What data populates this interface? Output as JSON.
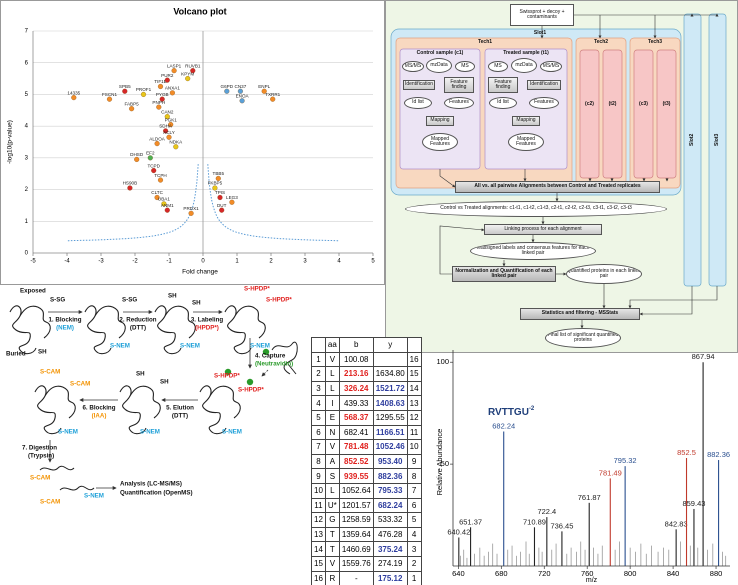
{
  "chart_data": [
    {
      "type": "scatter",
      "title": "Volcano plot",
      "x_label": "Fold change",
      "y_label": "-log10(p-value)",
      "x": [
        -3.8,
        -2.75,
        -2.3,
        -2.1,
        -1.75,
        -1.25,
        -1.05,
        -0.85,
        -0.3,
        -0.45,
        -0.9,
        -1.2,
        -1.3,
        -1.05,
        -0.95,
        -1.1,
        -1.0,
        -0.8,
        -1.35,
        -1.55,
        -1.95,
        -1.45,
        -1.25,
        -2.15,
        -1.35,
        -1.15,
        -1.05,
        -0.35,
        0.45,
        0.35,
        0.5,
        0.85,
        0.55,
        0.7,
        1.1,
        1.15,
        1.8,
        2.05
      ],
      "values": [
        4.9,
        4.85,
        5.1,
        4.55,
        5.0,
        5.25,
        5.45,
        5.75,
        5.75,
        5.5,
        5.05,
        4.85,
        4.6,
        4.3,
        4.05,
        3.85,
        3.65,
        3.35,
        3.45,
        3.0,
        2.95,
        2.6,
        2.3,
        2.05,
        1.75,
        1.55,
        1.35,
        1.25,
        2.35,
        2.05,
        1.75,
        1.6,
        1.35,
        5.1,
        5.1,
        4.8,
        5.1,
        4.85
      ],
      "point_labels": [
        "14335",
        "FSCN1",
        "SPB5",
        "FABP5",
        "PROF1",
        "TIF1B",
        "PUR2",
        "LASP1",
        "RUVB1",
        "KPYM",
        "ANXA1",
        "PYGB",
        "PNPH",
        "CAN2",
        "PGK1",
        "SDHA",
        "ACLY",
        "NDKA",
        "ALDOA",
        "EF2",
        "DHSD",
        "TCPD",
        "TCPH",
        "HS90B",
        "CLTC",
        "UBA1",
        "ANM1",
        "PRDX1",
        "TBB5",
        "FKBP5",
        "TPIS",
        "LEG3",
        "DUT",
        "G6PD",
        "CN37",
        "ENOA",
        "ENPL",
        "TXRR1"
      ],
      "colors": [
        "#f28c28",
        "#f28c28",
        "#d62728",
        "#f28c28",
        "#e8c619",
        "#f28c28",
        "#d62728",
        "#f28c28",
        "#d62728",
        "#e8c619",
        "#f28c28",
        "#d62728",
        "#f28c28",
        "#e8c619",
        "#f28c28",
        "#d62728",
        "#f28c28",
        "#e8c619",
        "#f28c28",
        "#4caf50",
        "#f28c28",
        "#d62728",
        "#f28c28",
        "#d62728",
        "#f28c28",
        "#e8c619",
        "#d62728",
        "#f28c28",
        "#f28c28",
        "#e8c619",
        "#d62728",
        "#f28c28",
        "#d62728",
        "#5aa0d8",
        "#5aa0d8",
        "#5aa0d8",
        "#f28c28",
        "#f28c28"
      ],
      "xlim": [
        -5,
        5
      ],
      "ylim": [
        0,
        7
      ],
      "xticks": [
        -5,
        -4,
        -3,
        -2,
        -1,
        0,
        1,
        2,
        3,
        4,
        5
      ],
      "yticks": [
        0,
        1,
        2,
        3,
        4,
        5,
        6,
        7
      ],
      "grid": true
    },
    {
      "type": "stem",
      "annotation": {
        "text": "RVTTGU",
        "superscript": "-2"
      },
      "x_label": "m/z",
      "y_label": "Relative Abundance",
      "xlim": [
        635,
        893
      ],
      "ylim": [
        0,
        106
      ],
      "xticks": [
        640,
        680,
        720,
        760,
        800,
        840,
        880
      ],
      "yticks": [
        50,
        100
      ],
      "series": [
        {
          "labels": true,
          "x": [
            640.42,
            651.37,
            682.24,
            710.89,
            722.4,
            736.45,
            761.87,
            781.49,
            795.32,
            842.83,
            852.5,
            859.43,
            867.94,
            882.36
          ],
          "values": [
            14,
            19,
            66,
            19,
            24,
            17,
            31,
            43,
            49,
            18,
            53,
            28,
            100,
            52
          ],
          "colors": [
            "#222222",
            "#222222",
            "#2a4f8f",
            "#222222",
            "#222222",
            "#222222",
            "#222222",
            "#c0392b",
            "#2a4f8f",
            "#222222",
            "#c0392b",
            "#222222",
            "#222222",
            "#2a4f8f"
          ]
        },
        {
          "labels": false,
          "color": "#8a8a8a",
          "x": [
            642,
            645,
            648,
            655,
            660,
            664,
            668,
            672,
            676,
            686,
            690,
            694,
            698,
            703,
            706,
            715,
            718,
            727,
            731,
            741,
            745,
            750,
            754,
            758,
            766,
            770,
            774,
            786,
            790,
            800,
            805,
            810,
            815,
            820,
            826,
            831,
            836,
            847,
            856,
            863,
            872,
            877,
            886,
            889
          ],
          "values": [
            5,
            8,
            4,
            6,
            9,
            5,
            7,
            11,
            6,
            8,
            10,
            5,
            7,
            12,
            6,
            9,
            7,
            8,
            11,
            6,
            9,
            7,
            12,
            8,
            9,
            6,
            10,
            8,
            12,
            9,
            7,
            11,
            6,
            10,
            7,
            9,
            8,
            12,
            10,
            9,
            8,
            11,
            7,
            5
          ]
        }
      ]
    }
  ],
  "workflow": {
    "database": "Swissprot + decoy + contaminants",
    "slots": [
      "Slot1",
      "Slot2",
      "Slot3"
    ],
    "techs": [
      "Tech1",
      "Tech2",
      "Tech3"
    ],
    "control": "Control sample (c1)",
    "treated": "Treated sample (t1)",
    "ms_ms": "MS/MS",
    "mzdata": "mzData",
    "ms": "MS",
    "identification": "Identification",
    "feature_finding": "Feature finding",
    "id_list": "Id list",
    "features": "Features",
    "mapping": "Mapping",
    "mapped_features": "Mapped Features",
    "replicates": [
      "(c2)",
      "(t2)",
      "(c3)",
      "(t3)"
    ],
    "alignments": "All vs. all pairwise Alignments between Control and Treated replicates",
    "pairs": "Control vs Treated alignments: c1-t1, c1-t2, c1-t3, c2-t1, c2-t2, c2-t3, c3-t1, c3-t2, c3-t3",
    "linking": "Linking process for each alignment",
    "consensus": "reassigned labels and consensus features for each linked pair",
    "normalization": "Normalization and Quantification of each linked pair",
    "quantified": "Quantified proteins in each linked pair",
    "statistics": "Statistics and filtering - MSStats",
    "final": "Final list of significant quantified proteins"
  },
  "scheme": {
    "labels": [
      "Exposed",
      "Buried",
      "S-SG",
      "SH",
      "1. Blocking",
      "(NEM)",
      "2. Reduction",
      "(DTT)",
      "3. Labeling",
      "(HPDP*)",
      "S-HPDP*",
      "S-NEM",
      "4. Capture",
      "(Neutravidin)",
      "5. Elution",
      "6. Blocking",
      "(IAA)",
      "S-CAM",
      "7. Digestion",
      "(Trypsin)",
      "Analysis (LC-MS/MS)",
      "Quantification (OpenMS)"
    ],
    "label_colors": [
      null,
      null,
      null,
      null,
      null,
      "#1ea0d8",
      null,
      null,
      null,
      "#e0201e",
      "#e0201e",
      "#1ea0d8",
      null,
      "#2a9a2a",
      null,
      null,
      "#f39200",
      "#f39200",
      null,
      null,
      null,
      null
    ]
  },
  "table": {
    "header": [
      "aa",
      "b",
      "y"
    ],
    "rows": [
      [
        1,
        "V",
        "100.08",
        null,
        16
      ],
      [
        2,
        "L",
        "213.16",
        "1634.80",
        15
      ],
      [
        3,
        "L",
        "326.24",
        "1521.72",
        14
      ],
      [
        4,
        "I",
        "439.33",
        "1408.63",
        13
      ],
      [
        5,
        "E",
        "568.37",
        "1295.55",
        12
      ],
      [
        6,
        "N",
        "682.41",
        "1166.51",
        11
      ],
      [
        7,
        "V",
        "781.48",
        "1052.46",
        10
      ],
      [
        8,
        "A",
        "852.52",
        "953.40",
        9
      ],
      [
        9,
        "S",
        "939.55",
        "882.36",
        8
      ],
      [
        10,
        "L",
        "1052.64",
        "795.33",
        7
      ],
      [
        11,
        "U*",
        "1201.57",
        "682.24",
        6
      ],
      [
        12,
        "G",
        "1258.59",
        "533.32",
        5
      ],
      [
        13,
        "T",
        "1359.64",
        "476.28",
        4
      ],
      [
        14,
        "T",
        "1460.69",
        "375.24",
        3
      ],
      [
        15,
        "V",
        "1559.76",
        "274.19",
        2
      ],
      [
        16,
        "R",
        "-",
        "175.12",
        1
      ]
    ],
    "b_colors": [
      null,
      "#e0201e",
      "#e0201e",
      null,
      "#e0201e",
      null,
      "#e0201e",
      "#e0201e",
      "#e0201e",
      null,
      null,
      null,
      null,
      null,
      null,
      null
    ],
    "y_colors": [
      null,
      null,
      "#2e3d9e",
      "#2e3d9e",
      null,
      "#2e3d9e",
      "#2e3d9e",
      "#2e3d9e",
      "#2e3d9e",
      "#2e3d9e",
      "#2e3d9e",
      null,
      null,
      "#2e3d9e",
      null,
      "#2e3d9e"
    ]
  }
}
